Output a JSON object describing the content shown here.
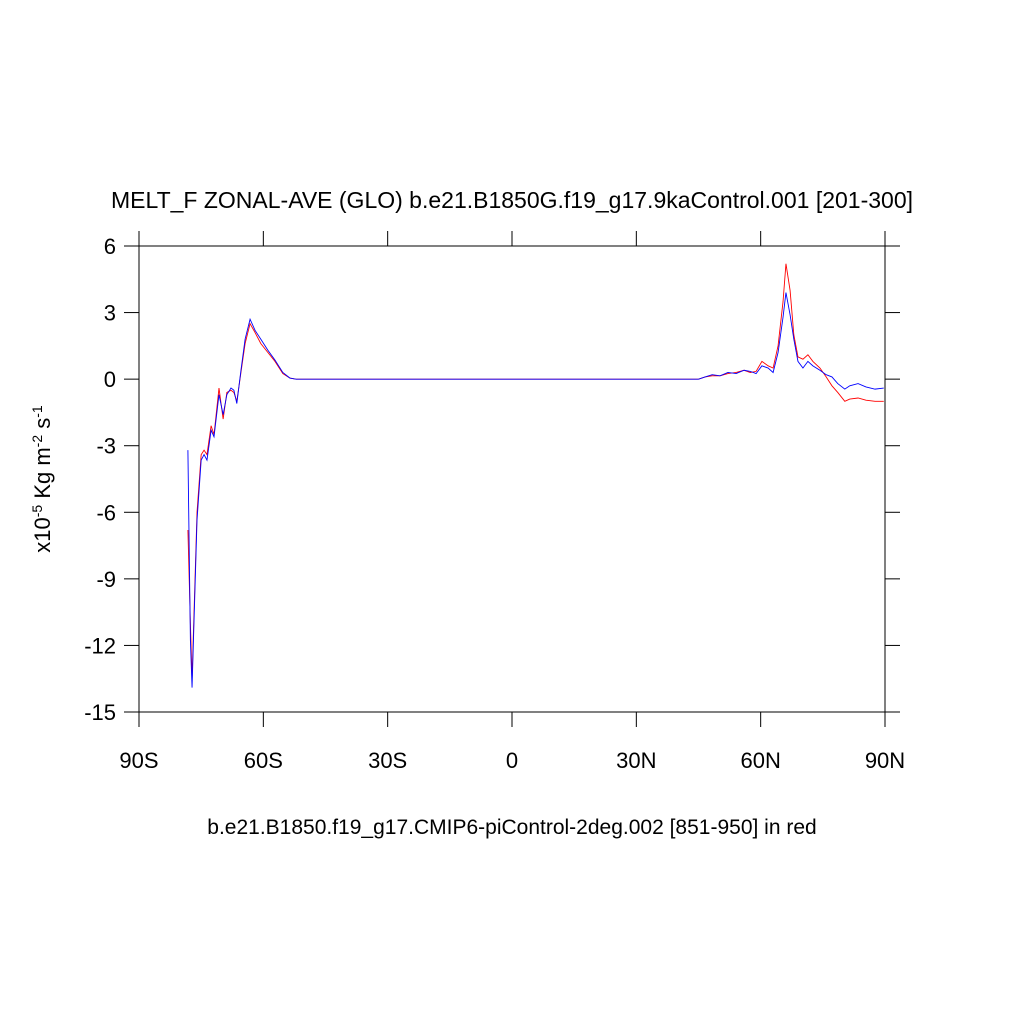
{
  "chart_data": {
    "type": "line",
    "title": "MELT_F ZONAL-AVE (GLO) b.e21.B1850G.f19_g17.9kaControl.001 [201-300]",
    "ylabel": [
      "x10",
      "-5",
      " Kg m",
      "-2",
      " s",
      "-1"
    ],
    "caption": "b.e21.B1850.f19_g17.CMIP6-piControl-2deg.002 [851-950] in red",
    "xlim": [
      -90,
      90
    ],
    "xticks": [
      {
        "value": -90,
        "label": "90S"
      },
      {
        "value": -60,
        "label": "60S"
      },
      {
        "value": -30,
        "label": "30S"
      },
      0,
      {
        "value": 30,
        "label": "30N"
      },
      {
        "value": 60,
        "label": "60N"
      },
      {
        "value": 90,
        "label": "90N"
      }
    ],
    "ylim": [
      -15,
      6
    ],
    "yticks": [
      6,
      3,
      0,
      -3,
      -6,
      -9,
      -12,
      -15
    ],
    "x": [
      -78.2,
      -77.6,
      -77.2,
      -76.0,
      -75.0,
      -74.3,
      -73.6,
      -72.6,
      -71.9,
      -70.7,
      -69.7,
      -68.8,
      -67.8,
      -67.1,
      -66.4,
      -65.4,
      -64.4,
      -63.2,
      -62.0,
      -60.6,
      -58.9,
      -57.2,
      -55.3,
      -53.6,
      -52.1,
      0,
      45.0,
      46.6,
      48.3,
      50.2,
      52.1,
      54.1,
      56.0,
      57.5,
      58.9,
      60.3,
      61.8,
      63.0,
      64.2,
      65.4,
      66.1,
      67.1,
      68.0,
      69.0,
      70.2,
      71.4,
      72.6,
      74.3,
      75.8,
      77.2,
      78.6,
      80.3,
      81.5,
      83.5,
      85.4,
      87.6,
      89.7
    ],
    "series": [
      {
        "color": "#ff0000",
        "values": [
          -6.8,
          -11,
          -13.5,
          -6.0,
          -3.4,
          -3.2,
          -3.4,
          -2.1,
          -2.5,
          -0.4,
          -1.8,
          -0.6,
          -0.5,
          -0.6,
          -1.0,
          0.3,
          1.6,
          2.5,
          2.1,
          1.6,
          1.2,
          0.8,
          0.25,
          0.05,
          0,
          0,
          0,
          0.1,
          0.15,
          0.15,
          0.25,
          0.3,
          0.4,
          0.3,
          0.35,
          0.8,
          0.6,
          0.5,
          1.5,
          3.5,
          5.2,
          4.0,
          2.0,
          1.0,
          0.9,
          1.1,
          0.8,
          0.5,
          0.1,
          -0.3,
          -0.6,
          -1.0,
          -0.9,
          -0.85,
          -0.95,
          -1.0,
          -1.0
        ]
      },
      {
        "color": "#0000ff",
        "values": [
          -3.2,
          -11.75,
          -13.9,
          -6.35,
          -3.65,
          -3.4,
          -3.65,
          -2.3,
          -2.6,
          -0.7,
          -1.6,
          -0.7,
          -0.4,
          -0.5,
          -1.1,
          0.4,
          1.8,
          2.7,
          2.2,
          1.8,
          1.3,
          0.86,
          0.3,
          0.05,
          0,
          0,
          0,
          0.1,
          0.2,
          0.15,
          0.3,
          0.25,
          0.4,
          0.35,
          0.25,
          0.6,
          0.5,
          0.3,
          1.2,
          2.8,
          3.9,
          2.9,
          1.8,
          0.8,
          0.5,
          0.8,
          0.6,
          0.4,
          0.2,
          0.1,
          -0.2,
          -0.45,
          -0.3,
          -0.2,
          -0.35,
          -0.45,
          -0.4
        ]
      }
    ]
  }
}
